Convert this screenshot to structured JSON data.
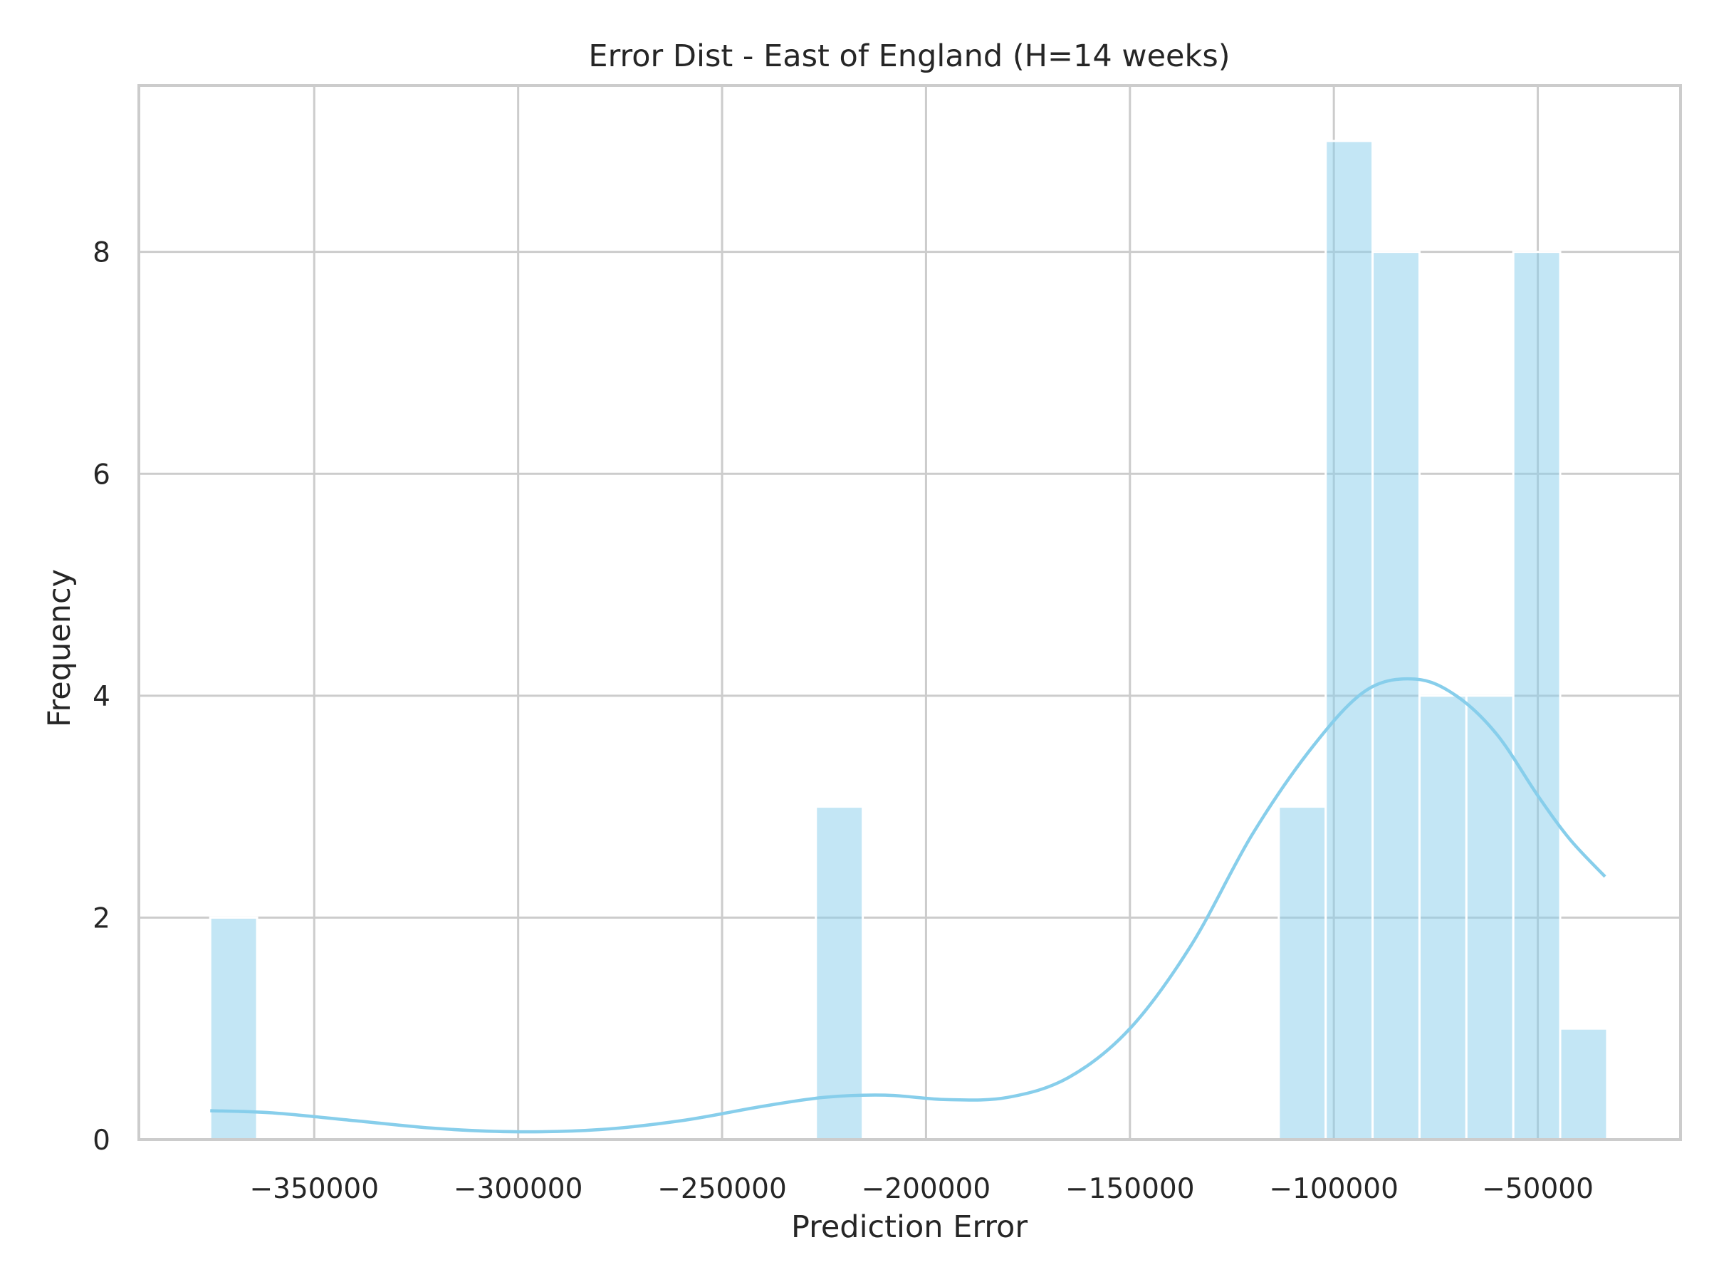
{
  "chart_data": {
    "type": "bar",
    "subtype": "histogram",
    "title": "Error Dist - East of England (H=14 weeks)",
    "xlabel": "Prediction Error",
    "ylabel": "Frequency",
    "xlim": [
      -393000,
      -15000
    ],
    "ylim": [
      0,
      9.5
    ],
    "xticks": [
      -350000,
      -300000,
      -250000,
      -200000,
      -150000,
      -100000,
      -50000
    ],
    "xtick_labels": [
      "−350000",
      "−300000",
      "−250000",
      "−200000",
      "−150000",
      "−100000",
      "−50000"
    ],
    "yticks": [
      0,
      2,
      4,
      6,
      8
    ],
    "ytick_labels": [
      "0",
      "2",
      "4",
      "6",
      "8"
    ],
    "grid": true,
    "bar_color": "#87CEEB",
    "bar_opacity": 0.5,
    "kde_color": "#87CEEB",
    "bins": [
      {
        "x0": -375500,
        "x1": -364000,
        "count": 2
      },
      {
        "x0": -227000,
        "x1": -215500,
        "count": 3
      },
      {
        "x0": -113500,
        "x1": -102000,
        "count": 3
      },
      {
        "x0": -102000,
        "x1": -90500,
        "count": 9
      },
      {
        "x0": -90500,
        "x1": -79000,
        "count": 8
      },
      {
        "x0": -79000,
        "x1": -67500,
        "count": 4
      },
      {
        "x0": -67500,
        "x1": -56000,
        "count": 4
      },
      {
        "x0": -56000,
        "x1": -44500,
        "count": 8
      },
      {
        "x0": -44500,
        "x1": -33000,
        "count": 1
      }
    ],
    "kde": {
      "x": [
        -375500,
        -360000,
        -340000,
        -320000,
        -300000,
        -280000,
        -260000,
        -240000,
        -225000,
        -210000,
        -195000,
        -180000,
        -165000,
        -150000,
        -135000,
        -120000,
        -105000,
        -92000,
        -80000,
        -70000,
        -60000,
        -50000,
        -42000,
        -33500
      ],
      "y": [
        0.26,
        0.24,
        0.17,
        0.1,
        0.07,
        0.09,
        0.17,
        0.3,
        0.38,
        0.4,
        0.36,
        0.38,
        0.56,
        1.0,
        1.75,
        2.75,
        3.55,
        4.05,
        4.15,
        4.0,
        3.65,
        3.1,
        2.7,
        2.37
      ]
    }
  }
}
